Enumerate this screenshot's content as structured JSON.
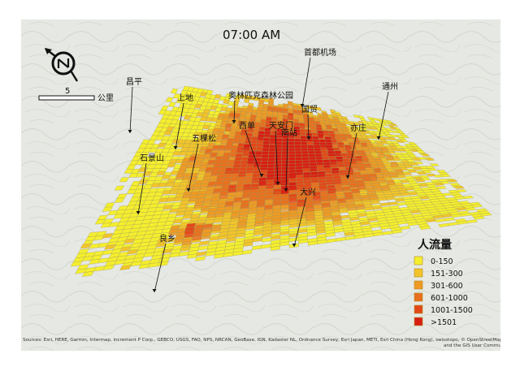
{
  "map": {
    "time_label": "07:00 AM",
    "scalebar": {
      "value": "5",
      "unit": "公里"
    },
    "compass": "north-arrow-icon",
    "places": [
      {
        "id": "changping",
        "label": "昌平"
      },
      {
        "id": "shangdi",
        "label": "上地"
      },
      {
        "id": "olympic",
        "label": "奥林匹克森林公园"
      },
      {
        "id": "airport",
        "label": "首都机场"
      },
      {
        "id": "guomao",
        "label": "国贸"
      },
      {
        "id": "tongzhou",
        "label": "通州"
      },
      {
        "id": "wukesong",
        "label": "五棵松"
      },
      {
        "id": "xidan",
        "label": "西单"
      },
      {
        "id": "tiananmen",
        "label": "天安门"
      },
      {
        "id": "nanzhan",
        "label": "南站"
      },
      {
        "id": "yizhuang",
        "label": "亦庄"
      },
      {
        "id": "shijingshan",
        "label": "石景山"
      },
      {
        "id": "daxing",
        "label": "大兴"
      },
      {
        "id": "liangxiang",
        "label": "良乡"
      }
    ],
    "attribution": "Sources: Esri, HERE, Garmin, Intermap, increment P Corp., GEBCO, USGS, FAO, NPS, NRCAN, GeoBase, IGN, Kadaster NL, Ordnance Survey, Esri Japan, METI, Esri China (Hong Kong), swisstopo, © OpenStreetMap contributors, and the GIS User Community"
  },
  "legend": {
    "title": "人流量",
    "classes": [
      {
        "label": "0-150",
        "color": "#f5ee2e"
      },
      {
        "label": "151-300",
        "color": "#f2c42a"
      },
      {
        "label": "301-600",
        "color": "#ee9a24"
      },
      {
        "label": "601-1000",
        "color": "#e9701e"
      },
      {
        "label": "1001-1500",
        "color": "#e34718"
      },
      {
        "label": ">1501",
        "color": "#d81e12"
      }
    ]
  },
  "colors": {
    "terrain": "#e6e8e3",
    "grid_line": "#9a9a5e"
  }
}
